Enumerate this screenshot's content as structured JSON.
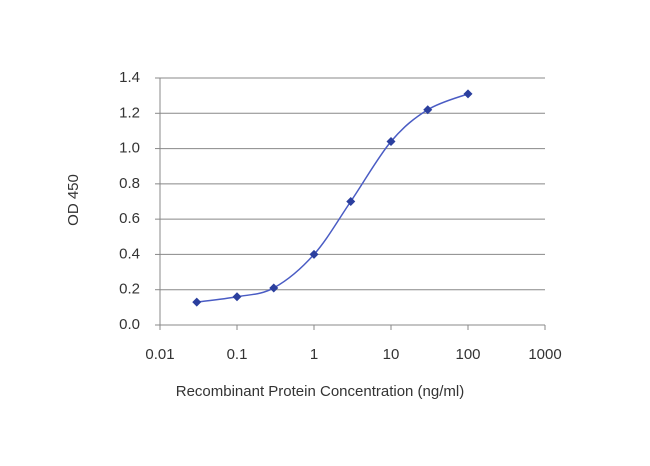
{
  "chart_data": {
    "type": "line",
    "x_label": "Recombinant Protein Concentration (ng/ml)",
    "y_label": "OD 450",
    "x": [
      0.03,
      0.1,
      0.3,
      1,
      3,
      10,
      30,
      100
    ],
    "series": [
      {
        "color": "#2b3f9e",
        "values": [
          0.13,
          0.16,
          0.21,
          0.4,
          0.7,
          1.04,
          1.22,
          1.31
        ]
      }
    ],
    "xscale": "log",
    "xlim": [
      0.01,
      1000
    ],
    "xticks": [
      0.01,
      0.1,
      1,
      10,
      100,
      1000
    ],
    "ylim": [
      0,
      1.4
    ],
    "yticks": [
      {
        "value": 0,
        "label": "0.0"
      },
      0.2,
      0.4,
      0.6,
      0.8,
      {
        "value": 1,
        "label": "1.0"
      },
      1.2,
      1.4
    ],
    "grid": true
  }
}
